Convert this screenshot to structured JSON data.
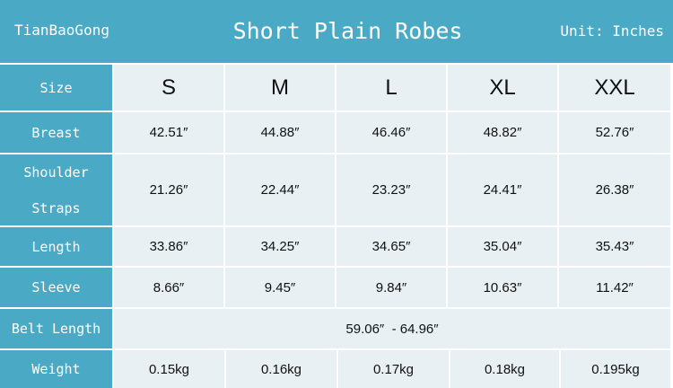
{
  "header": {
    "brand": "TianBaoGong",
    "title": "Short Plain Robes",
    "unit": "Unit: Inches"
  },
  "colors": {
    "header_bg": "#4aaac6",
    "cell_bg": "#e9f0f4"
  },
  "table": {
    "size_label": "Size",
    "sizes": [
      "S",
      "M",
      "L",
      "XL",
      "XXL"
    ],
    "rows": [
      {
        "label": "Breast",
        "values": [
          "42.51″",
          "44.88″",
          "46.46″",
          "48.82″",
          "52.76″"
        ]
      },
      {
        "label": "Shoulder Straps",
        "label_line1": "Shoulder",
        "label_line2": "Straps",
        "values": [
          "21.26″",
          "22.44″",
          "23.23″",
          "24.41″",
          "26.38″"
        ]
      },
      {
        "label": "Length",
        "values": [
          "33.86″",
          "34.25″",
          "34.65″",
          "35.04″",
          "35.43″"
        ]
      },
      {
        "label": "Sleeve",
        "values": [
          "8.66″",
          "9.45″",
          "9.84″",
          "10.63″",
          "11.42″"
        ]
      }
    ],
    "belt": {
      "label": "Belt Length",
      "value": "59.06″  - 64.96″"
    },
    "weight": {
      "label": "Weight",
      "values": [
        "0.15kg",
        "0.16kg",
        "0.17kg",
        "0.18kg",
        "0.195kg"
      ]
    }
  }
}
